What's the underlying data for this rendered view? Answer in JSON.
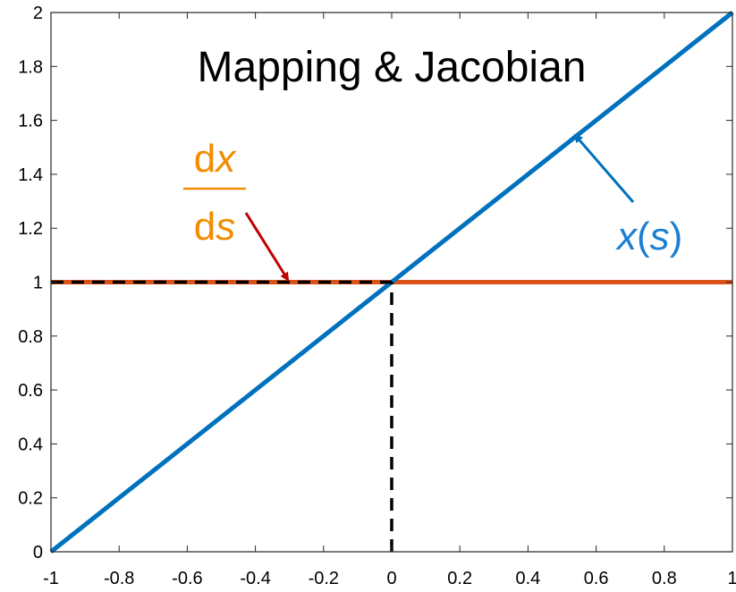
{
  "chart_data": {
    "type": "line",
    "title": "Mapping & Jacobian",
    "xlabel": "",
    "ylabel": "",
    "xlim": [
      -1,
      1
    ],
    "ylim": [
      0,
      2
    ],
    "grid": false,
    "x_ticks": [
      "-1",
      "-0.8",
      "-0.6",
      "-0.4",
      "-0.2",
      "0",
      "0.2",
      "0.4",
      "0.6",
      "0.8",
      "1"
    ],
    "y_ticks": [
      "0",
      "0.2",
      "0.4",
      "0.6",
      "0.8",
      "1",
      "1.2",
      "1.4",
      "1.6",
      "1.8",
      "2"
    ],
    "series": [
      {
        "name": "x(s)",
        "color": "#0072BD",
        "x": [
          -1,
          1
        ],
        "y": [
          0,
          2
        ]
      },
      {
        "name": "dx/ds",
        "color": "#D95319",
        "x": [
          -1,
          1
        ],
        "y": [
          1,
          1
        ]
      }
    ],
    "reference_lines": [
      {
        "style": "dashed",
        "color": "#000000",
        "x": [
          -1,
          0
        ],
        "y": [
          1,
          1
        ]
      },
      {
        "style": "dashed",
        "color": "#000000",
        "x": [
          0,
          0
        ],
        "y": [
          0,
          1
        ]
      }
    ],
    "annotations": {
      "xs": {
        "text_main": "x",
        "text_open": "(",
        "text_var": "s",
        "text_close": ")",
        "color": "#1a7fd4"
      },
      "dxds": {
        "num_d": "d",
        "num_var": "x",
        "den_d": "d",
        "den_var": "s",
        "color": "#F28C00",
        "arrow_color": "#C00000"
      }
    }
  }
}
